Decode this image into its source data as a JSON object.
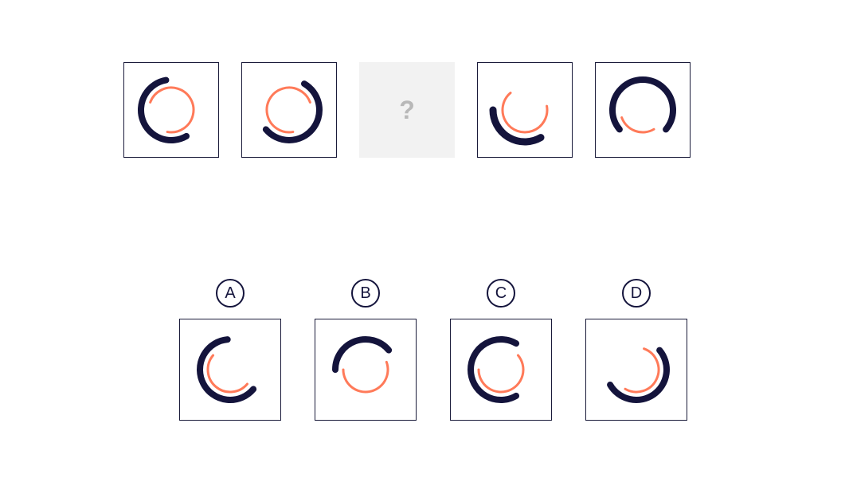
{
  "colors": {
    "background": "#ffffff",
    "tile_border": "#1a1b3a",
    "placeholder_bg": "#f2f2f2",
    "placeholder_fg": "#b8b8b8",
    "outer_arc": "#14143c",
    "inner_arc": "#ff7a59",
    "badge_border": "#14143c",
    "badge_text": "#14143c"
  },
  "geometry": {
    "tile_size": 120,
    "answer_tile_size": 128,
    "svg_size": 100,
    "outer_radius": 38,
    "inner_radius": 28,
    "outer_stroke": 8,
    "inner_stroke": 3
  },
  "sequence": [
    {
      "outer_start": 60,
      "outer_end": 260,
      "inner_start": 200,
      "inner_end": 100
    },
    {
      "outer_start": 300,
      "outer_end": 140,
      "inner_start": 80,
      "inner_end": 340
    },
    null,
    {
      "outer_start": 60,
      "outer_end": 180,
      "inner_start": 350,
      "inner_end": 230,
      "outer_radius": 40,
      "outer_stroke": 9
    },
    {
      "outer_start": 140,
      "outer_end": 40,
      "inner_start": 60,
      "inner_end": 160
    }
  ],
  "placeholder": {
    "label": "?"
  },
  "answers": [
    {
      "letter": "A",
      "outer_start": 40,
      "outer_end": 265,
      "inner_start": 40,
      "inner_end": 220
    },
    {
      "letter": "B",
      "outer_start": 180,
      "outer_end": 320,
      "inner_start": 340,
      "inner_end": 180
    },
    {
      "letter": "C",
      "outer_start": 60,
      "outer_end": 300,
      "inner_start": 320,
      "inner_end": 180
    },
    {
      "letter": "D",
      "outer_start": 320,
      "outer_end": 150,
      "inner_start": 290,
      "inner_end": 120
    }
  ]
}
